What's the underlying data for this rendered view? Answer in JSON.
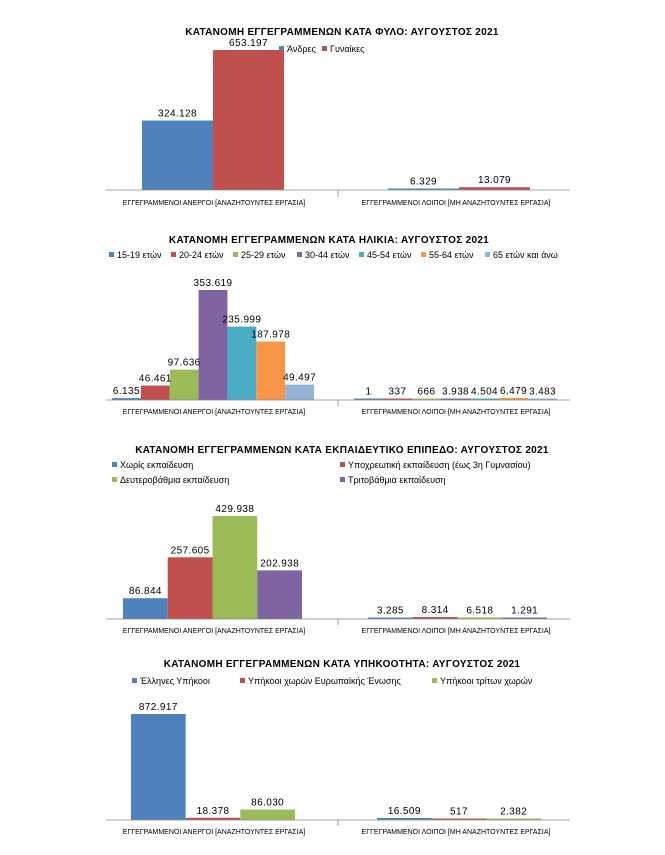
{
  "chart_data": [
    {
      "type": "bar",
      "title": "ΚΑΤΑΝΟΜΗ ΕΓΓΕΓΡΑΜΜΕΝΩΝ ΚΑΤΑ ΦΥΛΟ: ΑΥΓΟΥΣΤΟΣ  2021",
      "categories": [
        "ΕΓΓΕΓΡΑΜΜΕΝΟΙ ΑΝΕΡΓΟΙ [ΑΝΑΖΗΤΟΥΝΤΕΣ ΕΡΓΑΣΙΑ]",
        "ΕΓΓΕΓΡΑΜΜΕΝΟΙ ΛΟΙΠΟΙ [ΜΗ ΑΝΑΖΗΤΟΥΝΤΕΣ ΕΡΓΑΣΙΑ]"
      ],
      "series": [
        {
          "name": "Άνδρες",
          "color": "#4f81bd",
          "values": [
            324128,
            6329
          ],
          "labels": [
            "324.128",
            "6.329"
          ]
        },
        {
          "name": "Γυναίκες",
          "color": "#c0504d",
          "values": [
            653197,
            13079
          ],
          "labels": [
            "653.197",
            "13.079"
          ]
        }
      ],
      "ylim": [
        0,
        653197
      ],
      "legend": "top-right"
    },
    {
      "type": "bar",
      "title": "ΚΑΤΑΝΟΜΗ ΕΓΓΕΓΡΑΜΜΕΝΩΝ ΚΑΤΑ ΗΛΙΚΙΑ: ΑΥΓΟΥΣΤΟΣ  2021",
      "categories": [
        "ΕΓΓΕΓΡΑΜΜΕΝΟΙ ΑΝΕΡΓΟΙ [ΑΝΑΖΗΤΟΥΝΤΕΣ ΕΡΓΑΣΙΑ]",
        "ΕΓΓΕΓΡΑΜΜΕΝΟΙ ΛΟΙΠΟΙ [ΜΗ ΑΝΑΖΗΤΟΥΝΤΕΣ ΕΡΓΑΣΙΑ]"
      ],
      "series": [
        {
          "name": "15-19 ετών",
          "color": "#4f81bd",
          "values": [
            6135,
            1
          ],
          "labels": [
            "6.135",
            "1"
          ]
        },
        {
          "name": "20-24 ετών",
          "color": "#c0504d",
          "values": [
            46461,
            337
          ],
          "labels": [
            "46.461",
            "337"
          ]
        },
        {
          "name": "25-29 ετών",
          "color": "#9bbb59",
          "values": [
            97636,
            666
          ],
          "labels": [
            "97.636",
            "666"
          ]
        },
        {
          "name": "30-44 ετών",
          "color": "#8064a2",
          "values": [
            353619,
            3938
          ],
          "labels": [
            "353.619",
            "3.938"
          ]
        },
        {
          "name": "45-54 ετών",
          "color": "#4bacc6",
          "values": [
            235999,
            4504
          ],
          "labels": [
            "235.999",
            "4.504"
          ]
        },
        {
          "name": "55-64 ετών",
          "color": "#f79646",
          "values": [
            187978,
            6479
          ],
          "labels": [
            "187.978",
            "6.479"
          ]
        },
        {
          "name": "65 ετών και άνω",
          "color": "#95b3d7",
          "values": [
            49497,
            3483
          ],
          "labels": [
            "49.497",
            "3.483"
          ]
        }
      ],
      "ylim": [
        0,
        353619
      ],
      "legend": "top"
    },
    {
      "type": "bar",
      "title": "ΚΑΤΑΝΟΜΗ ΕΓΓΕΓΡΑΜΜΕΝΩΝ ΚΑΤΑ ΕΚΠΑΙΔΕΥΤΙΚΟ ΕΠΙΠΕΔΟ: ΑΥΓΟΥΣΤΟΣ  2021",
      "categories": [
        "ΕΓΓΕΓΡΑΜΜΕΝΟΙ ΑΝΕΡΓΟΙ [ΑΝΑΖΗΤΟΥΝΤΕΣ ΕΡΓΑΣΙΑ]",
        "ΕΓΓΕΓΡΑΜΜΕΝΟΙ ΛΟΙΠΟΙ [ΜΗ ΑΝΑΖΗΤΟΥΝΤΕΣ ΕΡΓΑΣΙΑ]"
      ],
      "series": [
        {
          "name": "Χωρίς εκπαίδευση",
          "color": "#4f81bd",
          "values": [
            86844,
            3285
          ],
          "labels": [
            "86.844",
            "3.285"
          ]
        },
        {
          "name": "Υποχρεωτική εκπαίδευση (έως 3η Γυμνασίου)",
          "color": "#c0504d",
          "values": [
            257605,
            8314
          ],
          "labels": [
            "257.605",
            "8.314"
          ]
        },
        {
          "name": "Δευτεροβάθμια εκπαίδευση",
          "color": "#9bbb59",
          "values": [
            429938,
            6518
          ],
          "labels": [
            "429.938",
            "6.518"
          ]
        },
        {
          "name": "Τριτοβάθμια εκπαίδευση",
          "color": "#8064a2",
          "values": [
            202938,
            1291
          ],
          "labels": [
            "202.938",
            "1.291"
          ]
        }
      ],
      "ylim": [
        0,
        429938
      ],
      "legend": "top"
    },
    {
      "type": "bar",
      "title": "ΚΑΤΑΝΟΜΗ ΕΓΓΕΓΡΑΜΜΕΝΩΝ ΚΑΤΑ ΥΠΗΚΟΟΤΗΤΑ: ΑΥΓΟΥΣΤΟΣ  2021",
      "categories": [
        "ΕΓΓΕΓΡΑΜΜΕΝΟΙ ΑΝΕΡΓΟΙ [ΑΝΑΖΗΤΟΥΝΤΕΣ ΕΡΓΑΣΙΑ]",
        "ΕΓΓΕΓΡΑΜΜΕΝΟΙ ΛΟΙΠΟΙ [ΜΗ ΑΝΑΖΗΤΟΥΝΤΕΣ ΕΡΓΑΣΙΑ]"
      ],
      "series": [
        {
          "name": "Έλληνες Υπήκοοι",
          "color": "#4f81bd",
          "values": [
            872917,
            16509
          ],
          "labels": [
            "872.917",
            "16.509"
          ]
        },
        {
          "name": "Υπήκοοι χωρών Ευρωπαϊκής Ένωσης",
          "color": "#c0504d",
          "values": [
            18378,
            517
          ],
          "labels": [
            "18.378",
            "517"
          ]
        },
        {
          "name": "Υπήκοοι τρίτων χωρών",
          "color": "#9bbb59",
          "values": [
            86030,
            2382
          ],
          "labels": [
            "86.030",
            "2.382"
          ]
        }
      ],
      "ylim": [
        0,
        872917
      ],
      "legend": "top"
    }
  ]
}
